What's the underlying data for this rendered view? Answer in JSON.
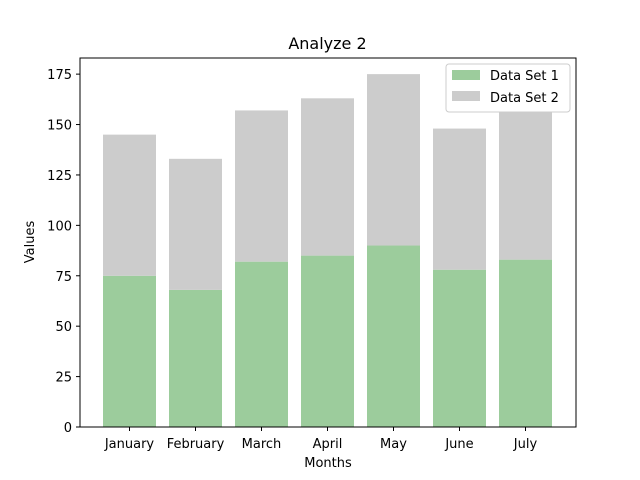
{
  "chart_data": {
    "type": "bar",
    "stacked": true,
    "title": "Analyze 2",
    "xlabel": "Months",
    "ylabel": "Values",
    "categories": [
      "January",
      "February",
      "March",
      "April",
      "May",
      "June",
      "July"
    ],
    "series": [
      {
        "name": "Data Set 1",
        "values": [
          75,
          68,
          82,
          85,
          90,
          78,
          83
        ],
        "color": "#9ccc9c"
      },
      {
        "name": "Data Set 2",
        "values": [
          70,
          65,
          75,
          78,
          85,
          70,
          73
        ],
        "color": "#cccccc"
      }
    ],
    "ylim": [
      0,
      183
    ],
    "yticks": [
      0,
      25,
      50,
      75,
      100,
      125,
      150,
      175
    ],
    "grid": false,
    "legend": "top-right"
  }
}
